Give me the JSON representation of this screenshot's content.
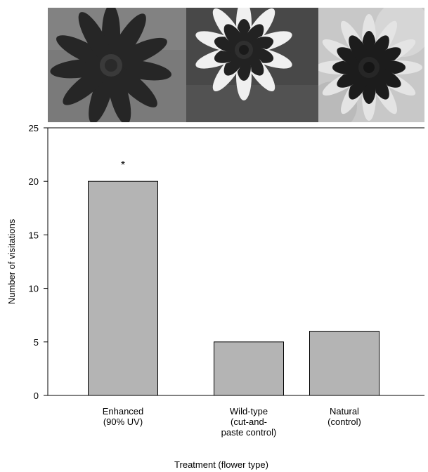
{
  "photos": [
    {
      "name": "enhanced-flower-photo",
      "bg": "#7a7a7a",
      "petal": "#2a2a2a",
      "tip": "#303030",
      "center": "#3a3a3a"
    },
    {
      "name": "wild-type-flower-photo",
      "bg": "#4a4a4a",
      "petal": "#1e1e1e",
      "tip": "#f2f2f2",
      "center": "#2f2f2f"
    },
    {
      "name": "natural-flower-photo",
      "bg": "#c9c9c9",
      "petal": "#1c1c1c",
      "tip": "#e6e6e6",
      "center": "#262626"
    }
  ],
  "chart_data": {
    "type": "bar",
    "categories": [
      [
        "Enhanced",
        "(90% UV)"
      ],
      [
        "Wild-type",
        "(cut-and-",
        "paste control)"
      ],
      [
        "Natural",
        "(control)"
      ]
    ],
    "values": [
      20,
      5,
      6
    ],
    "annotations": [
      "*",
      "",
      ""
    ],
    "ylabel": "Number of visitations",
    "xlabel": "Treatment (flower type)",
    "ylim": [
      0,
      25
    ],
    "yticks": [
      0,
      5,
      10,
      15,
      20,
      25
    ],
    "bar_color": "#b4b4b4",
    "grid": false
  }
}
